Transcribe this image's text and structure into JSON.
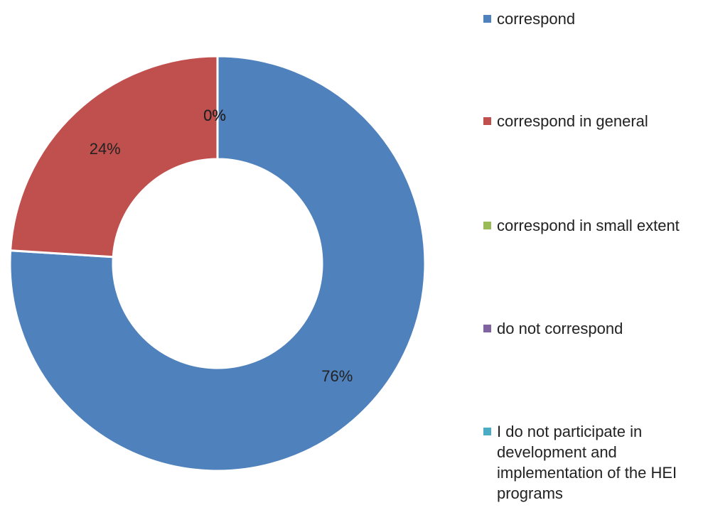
{
  "chart_data": {
    "type": "pie",
    "variant": "donut",
    "legend_position": "right",
    "slices": [
      {
        "category": "correspond",
        "value": 76,
        "label": "76%",
        "color": "#4f81bd"
      },
      {
        "category": "correspond in general",
        "value": 24,
        "label": "24%",
        "color": "#c0504d"
      },
      {
        "category": "correspond in small extent",
        "value": 0,
        "label": "0%",
        "color": "#9bbb59"
      },
      {
        "category": "do not correspond",
        "value": 0,
        "label": "0%",
        "color": "#8064a2"
      },
      {
        "category": "I do not participate in development and implementation of the HEI programs",
        "value": 0,
        "label": "0%",
        "color": "#4bacc6"
      }
    ]
  },
  "legend": {
    "items": [
      {
        "label": "correspond",
        "color": "#4f81bd"
      },
      {
        "label": "correspond in general",
        "color": "#c0504d"
      },
      {
        "label": "correspond in small extent",
        "color": "#9bbb59"
      },
      {
        "label": "do not correspond",
        "color": "#8064a2"
      },
      {
        "label": "I do not participate in development and implementation of the HEI programs",
        "color": "#4bacc6"
      }
    ]
  }
}
